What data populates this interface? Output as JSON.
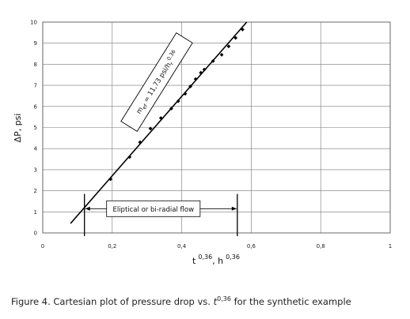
{
  "chart_data": {
    "type": "scatter",
    "xlabel": {
      "base1": "t",
      "exp1": "0,36",
      "sep": ", ",
      "base2": "h",
      "exp2": "0,36"
    },
    "ylabel": "ΔP, psi",
    "xlim": [
      0,
      1
    ],
    "ylim": [
      0,
      10
    ],
    "x_ticks": [
      "0",
      "0,2",
      "0,4",
      "0,6",
      "0,8",
      "1"
    ],
    "y_ticks": [
      "0",
      "1",
      "2",
      "3",
      "4",
      "5",
      "6",
      "7",
      "8",
      "9",
      "10"
    ],
    "grid": "vertical and horizontal at major ticks",
    "series": [
      {
        "marker": "diamond",
        "color": "#000000",
        "points": [
          {
            "x": 0.195,
            "y": 2.55
          },
          {
            "x": 0.25,
            "y": 3.6
          },
          {
            "x": 0.28,
            "y": 4.3
          },
          {
            "x": 0.31,
            "y": 4.95
          },
          {
            "x": 0.34,
            "y": 5.45
          },
          {
            "x": 0.37,
            "y": 5.9
          },
          {
            "x": 0.39,
            "y": 6.25
          },
          {
            "x": 0.41,
            "y": 6.6
          },
          {
            "x": 0.425,
            "y": 6.95
          },
          {
            "x": 0.44,
            "y": 7.3
          },
          {
            "x": 0.455,
            "y": 7.6
          },
          {
            "x": 0.465,
            "y": 7.75
          },
          {
            "x": 0.49,
            "y": 8.15
          },
          {
            "x": 0.515,
            "y": 8.45
          },
          {
            "x": 0.535,
            "y": 8.85
          },
          {
            "x": 0.555,
            "y": 9.25
          },
          {
            "x": 0.575,
            "y": 9.65
          }
        ]
      }
    ],
    "fit_line": {
      "from": [
        0.08,
        0.45
      ],
      "to": [
        0.587,
        10.0
      ]
    },
    "annotations": {
      "slope_label": {
        "m": "m",
        "m_sub": "ef",
        "text": " = 11,73 psi/h",
        "h_sub": "r",
        "h_exp": "0.36"
      },
      "flow_label": "Eliptical or bi-radial flow",
      "flow_range": [
        0.12,
        0.56
      ]
    }
  },
  "caption": {
    "prefix": "Figure 4. Cartesian plot of pressure drop vs. ",
    "var": "t",
    "exp": "0,36",
    "suffix": " for the synthetic example"
  }
}
